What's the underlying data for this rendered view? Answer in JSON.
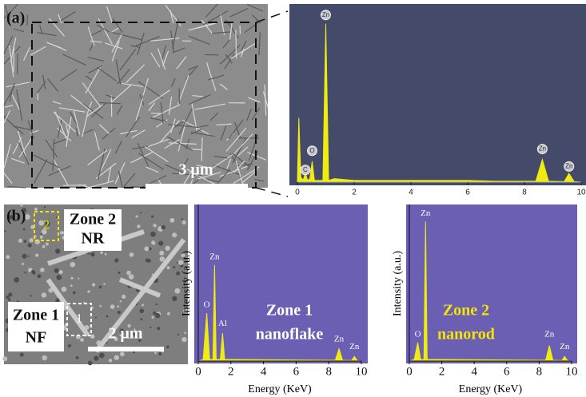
{
  "chart_data": [
    {
      "type": "area",
      "color": "#f0ec10",
      "background": "#434a6a",
      "x": [
        0,
        0.05,
        0.12,
        0.2,
        0.28,
        0.36,
        0.44,
        0.52,
        0.6,
        0.9,
        1.0,
        1.1,
        1.3,
        2,
        4,
        6,
        7,
        8.4,
        8.63,
        8.85,
        9.4,
        9.57,
        9.75,
        10
      ],
      "values": [
        0,
        37,
        3,
        1,
        5,
        1,
        2,
        12,
        1,
        1,
        91,
        1,
        2,
        1,
        1,
        1,
        0.5,
        0.5,
        13,
        0.5,
        0.3,
        5,
        0.3,
        0
      ],
      "xlim": [
        0,
        10
      ],
      "xticks": [
        0,
        2,
        4,
        6,
        8,
        10
      ],
      "ylim": [
        0,
        100
      ],
      "annotations": [
        {
          "text": "Zn",
          "x": 1.0,
          "y": 96
        },
        {
          "text": "O",
          "x": 0.52,
          "y": 18
        },
        {
          "text": "C",
          "x": 0.28,
          "y": 7
        },
        {
          "text": "Zn",
          "x": 8.63,
          "y": 19
        },
        {
          "text": "Zn",
          "x": 9.57,
          "y": 9
        }
      ]
    },
    {
      "type": "area",
      "color": "#f0ec10",
      "background": "#6a5fb2",
      "xlabel": "Energy (KeV)",
      "ylabel": "Intensity (a.u.)",
      "x": [
        0,
        0.3,
        0.52,
        0.7,
        0.9,
        1.0,
        1.1,
        1.35,
        1.49,
        1.62,
        2,
        8.4,
        8.63,
        8.85,
        9.4,
        9.57,
        9.75,
        10
      ],
      "values": [
        0,
        1,
        31,
        1,
        1,
        62,
        1,
        1,
        18,
        1,
        1,
        0.5,
        8,
        0.5,
        0.3,
        3,
        0.3,
        0
      ],
      "xlim": [
        0,
        10
      ],
      "xticks": [
        0,
        2,
        4,
        6,
        8,
        10
      ],
      "ylim": [
        0,
        100
      ],
      "annotations": [
        {
          "text": "O",
          "x": 0.52,
          "y": 36
        },
        {
          "text": "Zn",
          "x": 1.0,
          "y": 67
        },
        {
          "text": "Al",
          "x": 1.49,
          "y": 24
        },
        {
          "text": "Zn",
          "x": 8.63,
          "y": 14
        },
        {
          "text": "Zn",
          "x": 9.57,
          "y": 9
        }
      ],
      "label_lines": [
        "Zone 1",
        "nanoflake"
      ],
      "label_color": "#ffffff"
    },
    {
      "type": "area",
      "color": "#f0ec10",
      "background": "#6a5fb2",
      "xlabel": "Energy (KeV)",
      "ylabel": "Intensity (a.u.)",
      "x": [
        0,
        0.3,
        0.52,
        0.7,
        0.9,
        1.0,
        1.1,
        2,
        8.4,
        8.63,
        8.85,
        9.4,
        9.57,
        9.75,
        10
      ],
      "values": [
        0,
        1,
        12,
        1,
        1,
        90,
        1,
        1,
        0.5,
        10,
        0.5,
        0.3,
        3,
        0.3,
        0
      ],
      "xlim": [
        0,
        10
      ],
      "xticks": [
        0,
        2,
        4,
        6,
        8,
        10
      ],
      "ylim": [
        0,
        100
      ],
      "annotations": [
        {
          "text": "Zn",
          "x": 1.0,
          "y": 95
        },
        {
          "text": "O",
          "x": 0.52,
          "y": 17
        },
        {
          "text": "Zn",
          "x": 8.63,
          "y": 17
        },
        {
          "text": "Zn",
          "x": 9.57,
          "y": 9
        }
      ],
      "label_lines": [
        "Zone 2",
        "nanorod"
      ],
      "label_color": "#f5e30a"
    }
  ],
  "images": [
    {
      "panel": "(a)",
      "scale_bar": "3 μm"
    },
    {
      "panel": "(b)",
      "scale_bar": "2 μm",
      "zones": [
        {
          "title": "Zone 2",
          "kind": "NR",
          "box": "2"
        },
        {
          "title": "Zone 1",
          "kind": "NF",
          "box": "1"
        }
      ]
    }
  ]
}
